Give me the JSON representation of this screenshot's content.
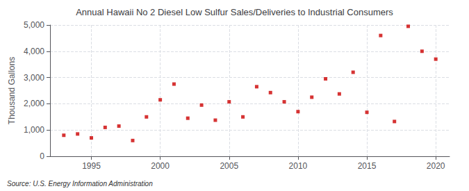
{
  "chart_data": {
    "type": "scatter",
    "title": "Annual Hawaii No 2 Diesel Low Sulfur Sales/Deliveries to Industrial Consumers",
    "ylabel": "Thousand Gallons",
    "annotation": "Source: U.S. Energy Information Administration",
    "x": [
      1993,
      1994,
      1995,
      1996,
      1997,
      1998,
      1999,
      2000,
      2001,
      2002,
      2003,
      2004,
      2005,
      2006,
      2007,
      2008,
      2009,
      2010,
      2011,
      2012,
      2013,
      2014,
      2015,
      2016,
      2017,
      2018,
      2019,
      2020
    ],
    "values": [
      800,
      850,
      700,
      1100,
      1150,
      600,
      1500,
      2150,
      2750,
      1450,
      1950,
      1375,
      2075,
      1500,
      2650,
      2425,
      2075,
      1700,
      2250,
      2950,
      2375,
      3200,
      1675,
      4600,
      1325,
      4950,
      4000,
      3700
    ],
    "color": "#cc0000",
    "marker": "square",
    "xlim": [
      1992,
      2021
    ],
    "xticks": [
      1995,
      2000,
      2005,
      2010,
      2015,
      2020
    ],
    "ylim": [
      0,
      5000
    ],
    "yticks": [
      0,
      {
        "value": 1000,
        "label": "1,000"
      },
      {
        "value": 2000,
        "label": "2,000"
      },
      {
        "value": 3000,
        "label": "3,000"
      },
      {
        "value": 4000,
        "label": "4,000"
      },
      {
        "value": 5000,
        "label": "5,000"
      }
    ],
    "grid": true
  }
}
